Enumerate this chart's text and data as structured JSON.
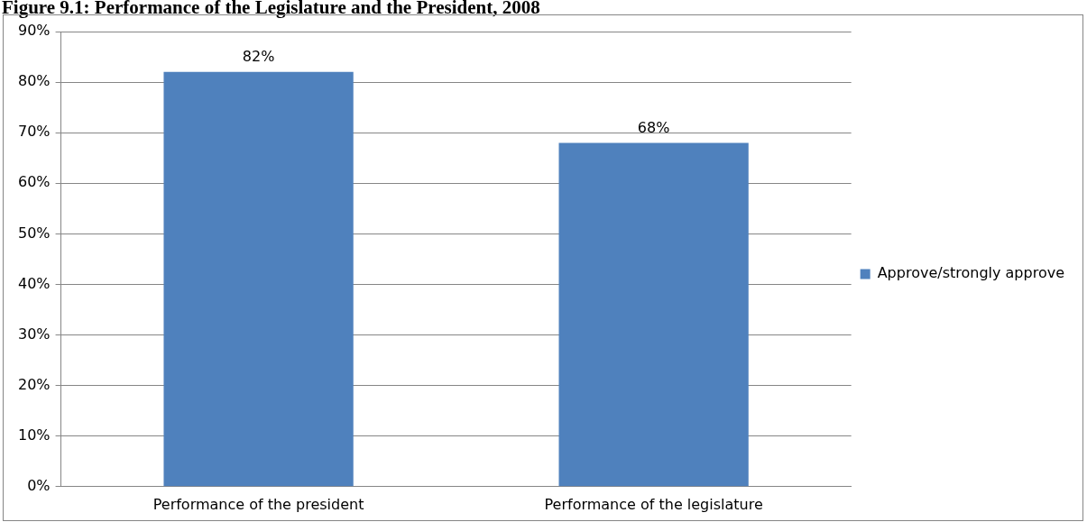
{
  "chart_data": {
    "type": "bar",
    "title": "Figure 9.1: Performance of the Legislature and the President, 2008",
    "categories": [
      "Performance of the president",
      "Performance of the legislature"
    ],
    "series": [
      {
        "name": "Approve/strongly approve",
        "color": "#4f81bd",
        "values": [
          82,
          68
        ],
        "value_labels": [
          "82%",
          "68%"
        ]
      }
    ],
    "ylim": [
      0,
      90
    ],
    "yticks": [
      {
        "value": 0,
        "label": "0%"
      },
      {
        "value": 10,
        "label": "10%"
      },
      {
        "value": 20,
        "label": "20%"
      },
      {
        "value": 30,
        "label": "30%"
      },
      {
        "value": 40,
        "label": "40%"
      },
      {
        "value": 50,
        "label": "50%"
      },
      {
        "value": 60,
        "label": "60%"
      },
      {
        "value": 70,
        "label": "70%"
      },
      {
        "value": 80,
        "label": "80%"
      },
      {
        "value": 90,
        "label": "90%"
      }
    ],
    "grid": "y",
    "legend": "right"
  }
}
